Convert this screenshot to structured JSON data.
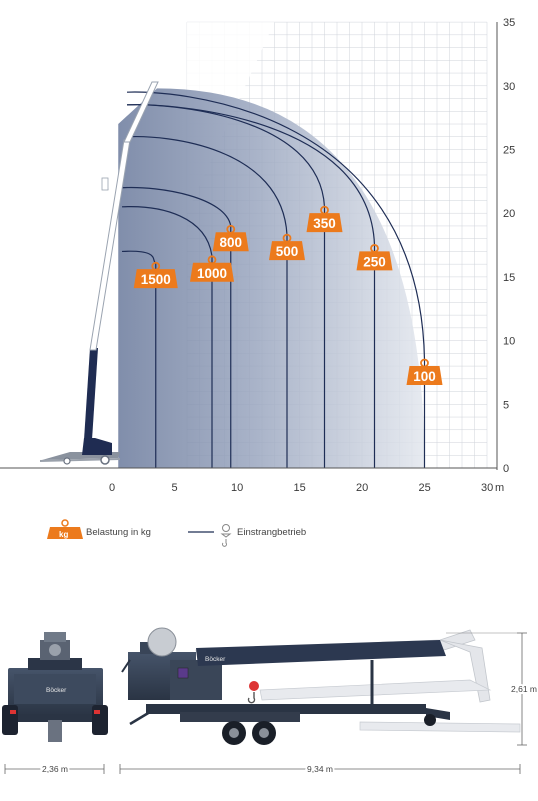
{
  "chart_data": {
    "type": "load-chart",
    "x_ticks": [
      "0",
      "5",
      "10",
      "15",
      "20",
      "25",
      "30"
    ],
    "x_unit": "m",
    "y_ticks": [
      "0",
      "5",
      "10",
      "15",
      "20",
      "25",
      "30",
      "35"
    ],
    "xlim": [
      -8.5,
      30
    ],
    "ylim": [
      0,
      35
    ],
    "load_curves": [
      {
        "load": "1500",
        "reach": 3.5,
        "top": 17.0,
        "badge": [
          3.5,
          14.9
        ]
      },
      {
        "load": "1000",
        "reach": 8.0,
        "top": 20.5,
        "badge": [
          8.0,
          15.4
        ]
      },
      {
        "load": "800",
        "reach": 9.5,
        "top": 22.0,
        "badge": [
          9.5,
          17.8
        ]
      },
      {
        "load": "500",
        "reach": 14.0,
        "top": 26.0,
        "badge": [
          14.0,
          17.1
        ]
      },
      {
        "load": "350",
        "reach": 17.0,
        "top": 28.5,
        "badge": [
          17.0,
          19.3
        ]
      },
      {
        "load": "250",
        "reach": 21.0,
        "top": 28.5,
        "badge": [
          21.0,
          16.3
        ]
      },
      {
        "load": "100",
        "reach": 25.0,
        "top": 29.5,
        "badge": [
          25.0,
          7.3
        ]
      }
    ]
  },
  "legend": {
    "badge_icon": "kg",
    "load_label": "Belastung in kg",
    "line_label": "Einstrangbetrieb"
  },
  "views": {
    "rear_width": "2,36 m",
    "side_length": "9,34 m",
    "side_height": "2,61 m",
    "brand": "Böcker"
  },
  "colors": {
    "badge": "#ec7a1c",
    "curve": "#1e2d55",
    "fill_dark": "#6d7d9e",
    "fill_light": "#dfe4ec",
    "grid": "#cfd3da",
    "machine": "#3b4656",
    "boom": "#2c3850"
  }
}
